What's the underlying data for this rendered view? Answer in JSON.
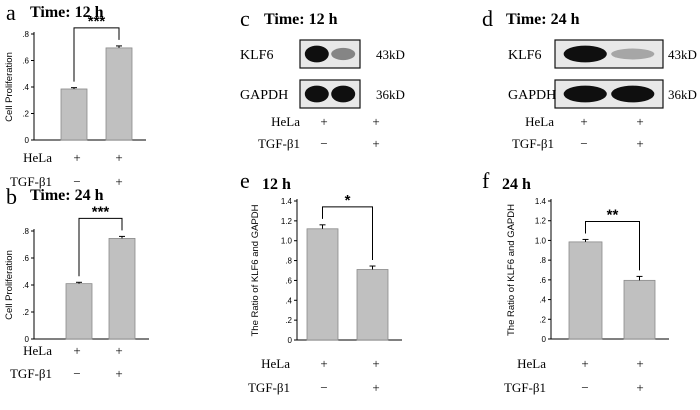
{
  "chart_data": [
    {
      "panel": "a",
      "type": "bar",
      "title": "Time: 12 h",
      "ylabel": "Cell Proliferation",
      "yticks": [
        "0",
        ".2",
        ".4",
        ".6",
        ".8"
      ],
      "ylim": [
        0,
        0.8
      ],
      "categories": [
        "HeLa + / TGF-β1 −",
        "HeLa + / TGF-β1 +"
      ],
      "values": [
        0.385,
        0.695
      ],
      "errors": [
        0.01,
        0.015
      ],
      "significance": "***",
      "row_labels": [
        "HeLa",
        "TGF-β1"
      ],
      "rows": [
        [
          "+",
          "+"
        ],
        [
          "−",
          "+"
        ]
      ]
    },
    {
      "panel": "b",
      "type": "bar",
      "title": "Time: 24 h",
      "ylabel": "Cell Proliferation",
      "yticks": [
        "0",
        ".2",
        ".4",
        ".6",
        ".8"
      ],
      "ylim": [
        0,
        0.8
      ],
      "categories": [
        "HeLa + / TGF-β1 −",
        "HeLa + / TGF-β1 +"
      ],
      "values": [
        0.41,
        0.745
      ],
      "errors": [
        0.01,
        0.015
      ],
      "significance": "***",
      "row_labels": [
        "HeLa",
        "TGF-β1"
      ],
      "rows": [
        [
          "+",
          "+"
        ],
        [
          "−",
          "+"
        ]
      ]
    },
    {
      "panel": "e",
      "type": "bar",
      "title": "12 h",
      "ylabel": "The Ratio of KLF6 and GAPDH",
      "yticks": [
        "0",
        ".2",
        ".4",
        ".6",
        ".8",
        "1.0",
        "1.2",
        "1.4"
      ],
      "ylim": [
        0,
        1.4
      ],
      "categories": [
        "HeLa + / TGF-β1 −",
        "HeLa + / TGF-β1 +"
      ],
      "values": [
        1.12,
        0.71
      ],
      "errors": [
        0.04,
        0.035
      ],
      "significance": "*",
      "row_labels": [
        "HeLa",
        "TGF-β1"
      ],
      "rows": [
        [
          "+",
          "+"
        ],
        [
          "−",
          "+"
        ]
      ]
    },
    {
      "panel": "f",
      "type": "bar",
      "title": "24 h",
      "ylabel": "The Ratio of KLF6 and GAPDH",
      "yticks": [
        "0",
        ".2",
        ".4",
        ".6",
        ".8",
        "1.0",
        "1.2",
        "1.4"
      ],
      "ylim": [
        0,
        1.4
      ],
      "categories": [
        "HeLa + / TGF-β1 −",
        "HeLa + / TGF-β1 +"
      ],
      "values": [
        0.985,
        0.595
      ],
      "errors": [
        0.025,
        0.04
      ],
      "significance": "**",
      "row_labels": [
        "HeLa",
        "TGF-β1"
      ],
      "rows": [
        [
          "+",
          "+"
        ],
        [
          "−",
          "+"
        ]
      ]
    }
  ],
  "blots": [
    {
      "panel": "c",
      "title": "Time: 12 h",
      "bands": [
        {
          "label": "KLF6",
          "size": "43kD",
          "intensities": [
            1.0,
            0.45
          ]
        },
        {
          "label": "GAPDH",
          "size": "36kD",
          "intensities": [
            1.0,
            1.0
          ]
        }
      ],
      "row_labels": [
        "HeLa",
        "TGF-β1"
      ],
      "rows": [
        [
          "+",
          "+"
        ],
        [
          "−",
          "+"
        ]
      ]
    },
    {
      "panel": "d",
      "title": "Time: 24 h",
      "bands": [
        {
          "label": "KLF6",
          "size": "43kD",
          "intensities": [
            1.0,
            0.3
          ]
        },
        {
          "label": "GAPDH",
          "size": "36kD",
          "intensities": [
            1.0,
            1.0
          ]
        }
      ],
      "row_labels": [
        "HeLa",
        "TGF-β1"
      ],
      "rows": [
        [
          "+",
          "+"
        ],
        [
          "−",
          "+"
        ]
      ]
    }
  ]
}
